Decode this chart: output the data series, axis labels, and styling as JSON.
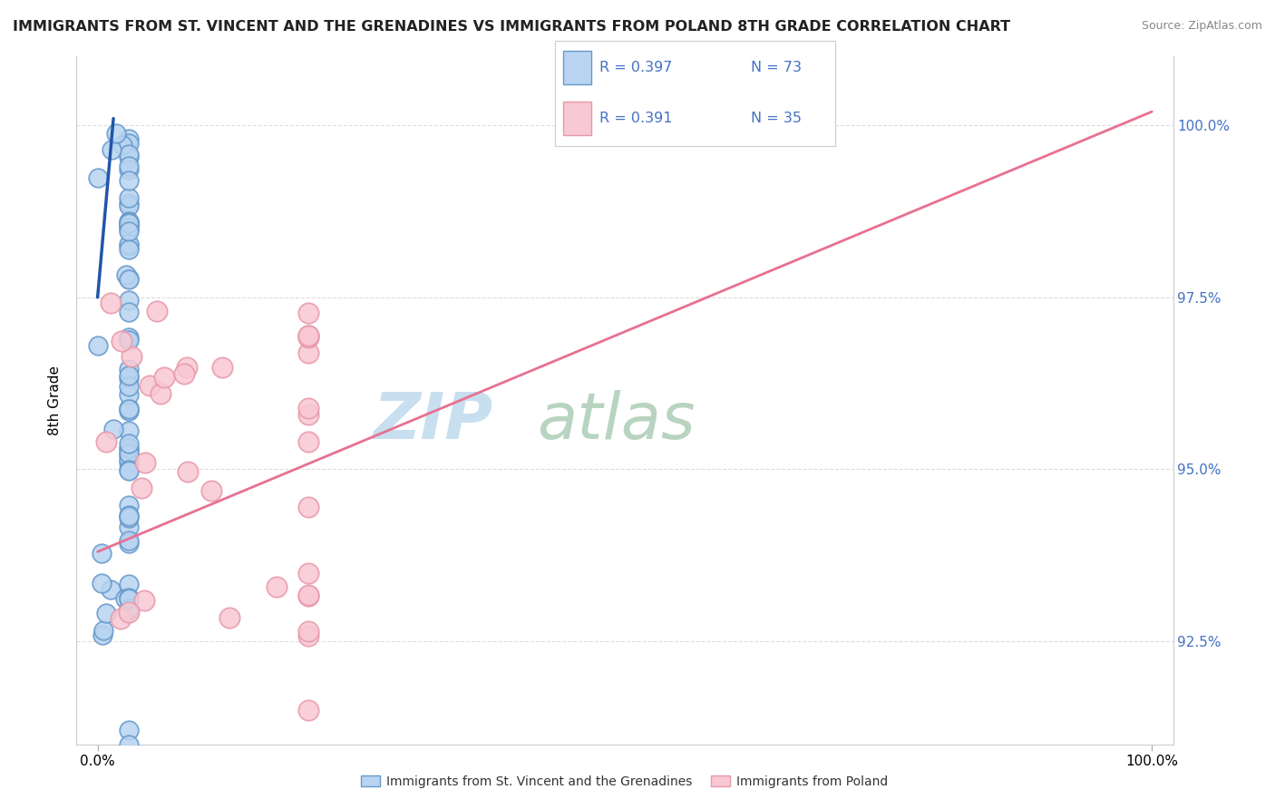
{
  "title": "IMMIGRANTS FROM ST. VINCENT AND THE GRENADINES VS IMMIGRANTS FROM POLAND 8TH GRADE CORRELATION CHART",
  "source": "Source: ZipAtlas.com",
  "ylabel": "8th Grade",
  "ytick_values": [
    92.5,
    95.0,
    97.5,
    100.0
  ],
  "ytick_labels": [
    "92.5%",
    "95.0%",
    "97.5%",
    "100.0%"
  ],
  "blue_face_color": "#b8d4f0",
  "blue_edge_color": "#6699cc",
  "pink_face_color": "#f8c8d4",
  "pink_edge_color": "#e899a8",
  "blue_line_color": "#2255aa",
  "pink_line_color": "#e87090",
  "grid_color": "#dddddd",
  "watermark_zip_color": "#c8dff0",
  "watermark_atlas_color": "#b8d4c0",
  "legend_blue_face": "#b8d4f0",
  "legend_pink_face": "#f8c8d4",
  "legend_text_color": "#4472c4",
  "bottom_label_blue": "Immigrants from St. Vincent and the Grenadines",
  "bottom_label_pink": "Immigrants from Poland",
  "xlim": [
    -2,
    102
  ],
  "ylim": [
    91.0,
    101.0
  ],
  "blue_line_x0": 0.0,
  "blue_line_y0": 97.5,
  "blue_line_x1": 1.5,
  "blue_line_y1": 100.1,
  "pink_line_x0": 0.0,
  "pink_line_y0": 93.8,
  "pink_line_x1": 100.0,
  "pink_line_y1": 100.2
}
